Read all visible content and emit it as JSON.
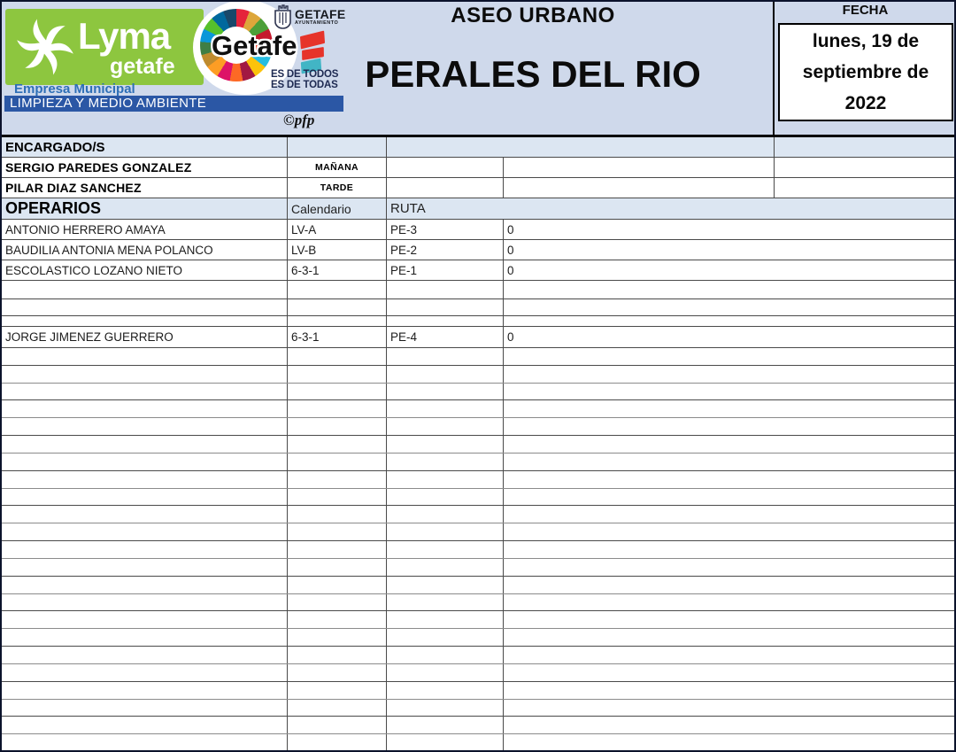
{
  "document": {
    "service_title": "ASEO URBANO",
    "zone_title": "PERALES DEL RIO",
    "credit": "©pfp"
  },
  "branding": {
    "lyma": {
      "name": "Lyma",
      "sub": "getafe",
      "empresa": "Empresa Municipal",
      "band": "LIMPIEZA Y MEDIO AMBIENTE"
    },
    "getafe": {
      "word": "Getafe",
      "ayto": "GETAFE",
      "ayto_sub": "AYUNTAMIENTO",
      "tagline1": "ES DE TODOS",
      "tagline2": "ES DE TODAS"
    }
  },
  "fecha": {
    "label": "FECHA",
    "lines": [
      "lunes, 19 de",
      "septiembre de",
      "2022"
    ]
  },
  "table": {
    "encargados_header": "ENCARGADO/S",
    "encargados": [
      {
        "name": "SERGIO PAREDES GONZALEZ",
        "shift": "MAÑANA"
      },
      {
        "name": "PILAR DIAZ SANCHEZ",
        "shift": "TARDE"
      }
    ],
    "operarios_header": "OPERARIOS",
    "calendario_header": "Calendario",
    "ruta_header": "RUTA",
    "roster": [
      {
        "name": "ANTONIO HERRERO AMAYA",
        "calendario": "LV-A",
        "ruta": "PE-3",
        "valor": "0"
      },
      {
        "name": "BAUDILIA ANTONIA MENA POLANCO",
        "calendario": "LV-B",
        "ruta": "PE-2",
        "valor": "0"
      },
      {
        "name": "ESCOLASTICO LOZANO NIETO",
        "calendario": "6-3-1",
        "ruta": "PE-1",
        "valor": "0"
      },
      {},
      {},
      {},
      {
        "name": "JORGE JIMENEZ GUERRERO",
        "calendario": "6-3-1",
        "ruta": "PE-4",
        "valor": "0"
      }
    ],
    "trailing_empty_rows": 23
  },
  "colors": {
    "banner_bg": "#cfd9eb",
    "header_row_bg": "#dce6f2",
    "lyma_green": "#8dc63f",
    "band_navy": "#2b57a5",
    "empresa_blue": "#2e6fb7",
    "accent_red": "#e6332a",
    "accent_teal": "#42b5c5"
  }
}
